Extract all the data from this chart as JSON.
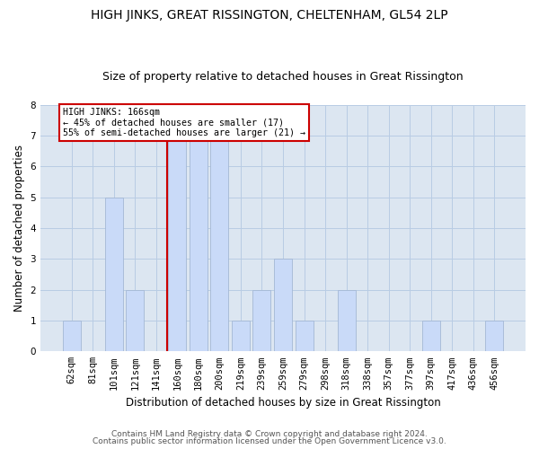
{
  "title": "HIGH JINKS, GREAT RISSINGTON, CHELTENHAM, GL54 2LP",
  "subtitle": "Size of property relative to detached houses in Great Rissington",
  "xlabel": "Distribution of detached houses by size in Great Rissington",
  "ylabel": "Number of detached properties",
  "footer1": "Contains HM Land Registry data © Crown copyright and database right 2024.",
  "footer2": "Contains public sector information licensed under the Open Government Licence v3.0.",
  "categories": [
    "62sqm",
    "81sqm",
    "101sqm",
    "121sqm",
    "141sqm",
    "160sqm",
    "180sqm",
    "200sqm",
    "219sqm",
    "239sqm",
    "259sqm",
    "279sqm",
    "298sqm",
    "318sqm",
    "338sqm",
    "357sqm",
    "377sqm",
    "397sqm",
    "417sqm",
    "436sqm",
    "456sqm"
  ],
  "values": [
    1,
    0,
    5,
    2,
    0,
    7,
    7,
    7,
    1,
    2,
    3,
    1,
    0,
    2,
    0,
    0,
    0,
    1,
    0,
    0,
    1
  ],
  "bar_color": "#c9daf8",
  "bar_edge_color": "#a4b8d4",
  "highlight_index": 5,
  "highlight_line_color": "#cc0000",
  "annotation_text": "HIGH JINKS: 166sqm\n← 45% of detached houses are smaller (17)\n55% of semi-detached houses are larger (21) →",
  "annotation_box_color": "#ffffff",
  "annotation_box_edge": "#cc0000",
  "ylim": [
    0,
    8
  ],
  "yticks": [
    0,
    1,
    2,
    3,
    4,
    5,
    6,
    7,
    8
  ],
  "grid_color": "#b8cce4",
  "bg_color": "#dce6f1",
  "title_fontsize": 10,
  "subtitle_fontsize": 9,
  "xlabel_fontsize": 8.5,
  "ylabel_fontsize": 8.5,
  "tick_fontsize": 7.5,
  "footer_fontsize": 6.5
}
